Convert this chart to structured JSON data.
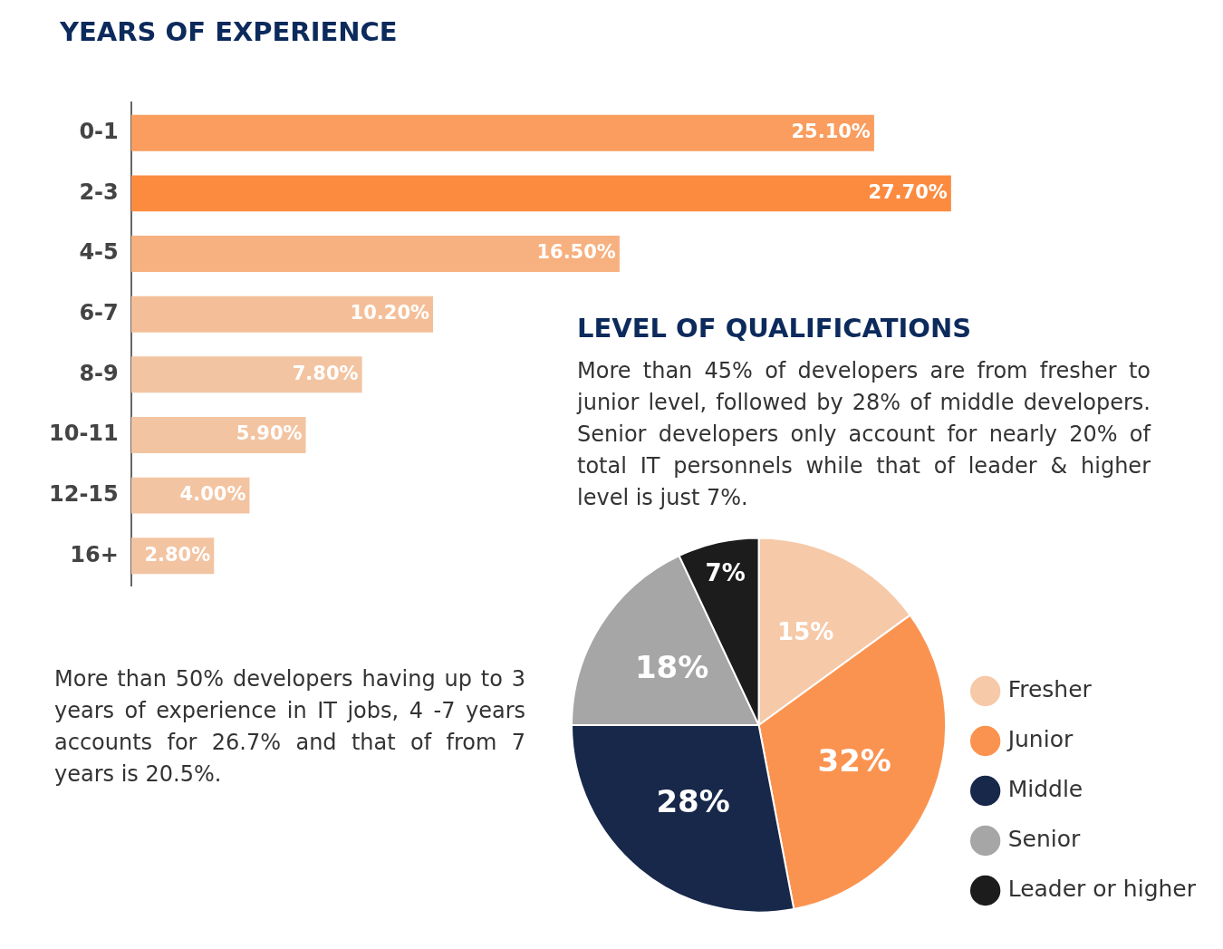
{
  "chart_data": [
    {
      "type": "bar",
      "orientation": "horizontal",
      "title": "YEARS OF EXPERIENCE",
      "categories": [
        "0-1",
        "2-3",
        "4-5",
        "6-7",
        "8-9",
        "10-11",
        "12-15",
        "16+"
      ],
      "values": [
        25.1,
        27.7,
        16.5,
        10.2,
        7.8,
        5.9,
        4.0,
        2.8
      ],
      "value_labels": [
        "25.10%",
        "27.70%",
        "16.50%",
        "10.20%",
        "7.80%",
        "5.90%",
        "4.00%",
        "2.80%"
      ],
      "colors": [
        "#fa9d5e",
        "#fc8b40",
        "#f7b07f",
        "#f4bf98",
        "#f3c4a2",
        "#f3c4a2",
        "#f3c4a2",
        "#f3c4a2"
      ],
      "tick_labels": "y",
      "annotations": [
        "More than 50% developers having up to 3 years of experience in IT jobs, 4 -7 years accounts for 26.7% and that of from 7 years is 20.5%."
      ]
    },
    {
      "type": "pie",
      "title": "LEVEL OF QUALIFICATIONS",
      "subtitle": "More than 45% of developers are from fresher to junior level, followed by 28% of middle developers. Senior developers only account for nearly 20% of total IT personnels while that of leader & higher level is just 7%.",
      "categories": [
        "Fresher",
        "Junior",
        "Middle",
        "Senior",
        "Leader or higher"
      ],
      "values": [
        15,
        32,
        28,
        18,
        7
      ],
      "value_labels": [
        "15%",
        "32%",
        "28%",
        "18%",
        "7%"
      ],
      "colors": [
        "#f6c9a8",
        "#fb9350",
        "#17284a",
        "#a6a6a6",
        "#1c1c1c"
      ],
      "legend": "right"
    }
  ]
}
